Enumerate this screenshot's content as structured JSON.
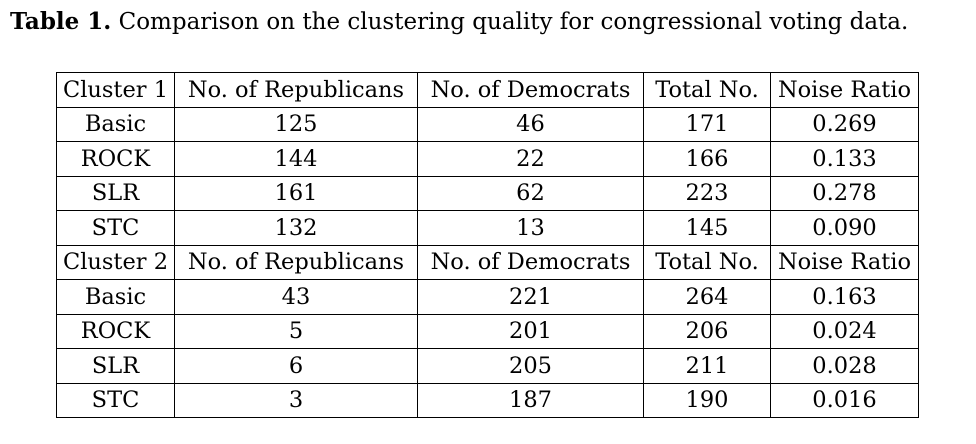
{
  "caption": {
    "label": "Table 1.",
    "text": "Comparison on the clustering quality for congressional voting data."
  },
  "groups": [
    {
      "header": [
        "Cluster 1",
        "No. of Republicans",
        "No. of Democrats",
        "Total No.",
        "Noise Ratio"
      ],
      "rows": [
        [
          "Basic",
          "125",
          "46",
          "171",
          "0.269"
        ],
        [
          "ROCK",
          "144",
          "22",
          "166",
          "0.133"
        ],
        [
          "SLR",
          "161",
          "62",
          "223",
          "0.278"
        ],
        [
          "STC",
          "132",
          "13",
          "145",
          "0.090"
        ]
      ]
    },
    {
      "header": [
        "Cluster 2",
        "No. of Republicans",
        "No. of Democrats",
        "Total No.",
        "Noise Ratio"
      ],
      "rows": [
        [
          "Basic",
          "43",
          "221",
          "264",
          "0.163"
        ],
        [
          "ROCK",
          "5",
          "201",
          "206",
          "0.024"
        ],
        [
          "SLR",
          "6",
          "205",
          "211",
          "0.028"
        ],
        [
          "STC",
          "3",
          "187",
          "190",
          "0.016"
        ]
      ]
    }
  ]
}
